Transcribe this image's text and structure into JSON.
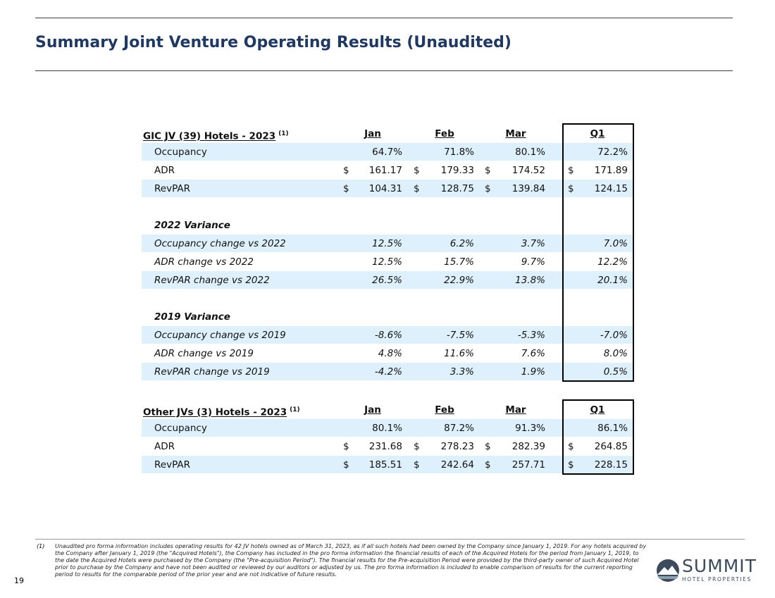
{
  "header": {
    "title": "Summary Joint Venture Operating Results (Unaudited)"
  },
  "tables": [
    {
      "title": "GIC JV (39) Hotels - 2023",
      "note": "(1)",
      "columns": [
        "Jan",
        "Feb",
        "Mar",
        "Q1"
      ],
      "rows": [
        {
          "label": "Occupancy",
          "values": [
            "64.7%",
            "71.8%",
            "80.1%",
            "72.2%"
          ]
        },
        {
          "label": "ADR",
          "currency": "$",
          "values": [
            "161.17",
            "179.33",
            "174.52",
            "171.89"
          ]
        },
        {
          "label": "RevPAR",
          "currency": "$",
          "values": [
            "104.31",
            "128.75",
            "139.84",
            "124.15"
          ]
        }
      ],
      "sections": [
        {
          "heading": "2022 Variance",
          "rows": [
            {
              "label": "Occupancy change vs 2022",
              "values": [
                "12.5%",
                "6.2%",
                "3.7%",
                "7.0%"
              ]
            },
            {
              "label": "ADR change vs 2022",
              "values": [
                "12.5%",
                "15.7%",
                "9.7%",
                "12.2%"
              ]
            },
            {
              "label": "RevPAR change vs 2022",
              "values": [
                "26.5%",
                "22.9%",
                "13.8%",
                "20.1%"
              ]
            }
          ]
        },
        {
          "heading": "2019 Variance",
          "rows": [
            {
              "label": "Occupancy change vs 2019",
              "values": [
                "-8.6%",
                "-7.5%",
                "-5.3%",
                "-7.0%"
              ]
            },
            {
              "label": "ADR change vs 2019",
              "values": [
                "4.8%",
                "11.6%",
                "7.6%",
                "8.0%"
              ]
            },
            {
              "label": "RevPAR change vs 2019",
              "values": [
                "-4.2%",
                "3.3%",
                "1.9%",
                "0.5%"
              ]
            }
          ]
        }
      ]
    },
    {
      "title": "Other JVs (3) Hotels - 2023",
      "note": "(1)",
      "columns": [
        "Jan",
        "Feb",
        "Mar",
        "Q1"
      ],
      "rows": [
        {
          "label": "Occupancy",
          "values": [
            "80.1%",
            "87.2%",
            "91.3%",
            "86.1%"
          ]
        },
        {
          "label": "ADR",
          "currency": "$",
          "values": [
            "231.68",
            "278.23",
            "282.39",
            "264.85"
          ]
        },
        {
          "label": "RevPAR",
          "currency": "$",
          "values": [
            "185.51",
            "242.64",
            "257.71",
            "228.15"
          ]
        }
      ]
    }
  ],
  "footer": {
    "footnote_marker": "(1)",
    "footnote": "Unaudited pro forma information includes operating results for 42 JV hotels owned as of March 31, 2023, as if all such hotels had been owned by the Company since January 1, 2019. For any hotels acquired by the Company after January 1, 2019 (the \"Acquired Hotels\"), the Company has included in the pro forma information the financial results of each of the Acquired Hotels for the period from January 1, 2019, to the date the Acquired Hotels were purchased by the Company (the \"Pre-acquisition Period\"). The financial results for the Pre-acquisition Period were provided by the third-party owner of such Acquired Hotel prior to purchase by the Company and have not been audited or reviewed by our auditors or adjusted by us. The pro forma information is included to enable comparison of results for the current reporting period to results for the comparable period of the prior year and are not indicative of future results.",
    "page_number": "19",
    "logo_name": "SUMMIT",
    "logo_tagline": "HOTEL PROPERTIES"
  }
}
